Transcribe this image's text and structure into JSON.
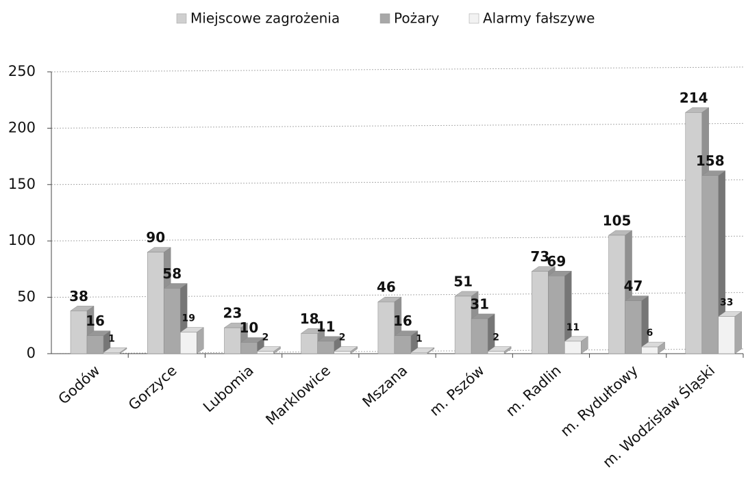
{
  "chart_data": {
    "type": "bar",
    "categories": [
      "Godów",
      "Gorzyce",
      "Lubomia",
      "Marklowice",
      "Mszana",
      "m. Pszów",
      "m. Radlin",
      "m. Rydułtowy",
      "m. Wodzisław Śląski"
    ],
    "series": [
      {
        "name": "Miejscowe zagrożenia",
        "color": "#cfcfcf",
        "values": [
          38,
          90,
          23,
          18,
          46,
          51,
          73,
          105,
          214
        ]
      },
      {
        "name": "Pożary",
        "color": "#a8a8a8",
        "values": [
          16,
          58,
          10,
          11,
          16,
          31,
          69,
          47,
          158
        ]
      },
      {
        "name": "Alarmy fałszywe",
        "color": "#f2f2f2",
        "values": [
          1,
          19,
          2,
          2,
          1,
          2,
          11,
          6,
          33
        ]
      }
    ],
    "ylim": [
      0,
      250
    ],
    "yticks": [
      0,
      50,
      100,
      150,
      200,
      250
    ],
    "grid": true,
    "legend": "top"
  }
}
